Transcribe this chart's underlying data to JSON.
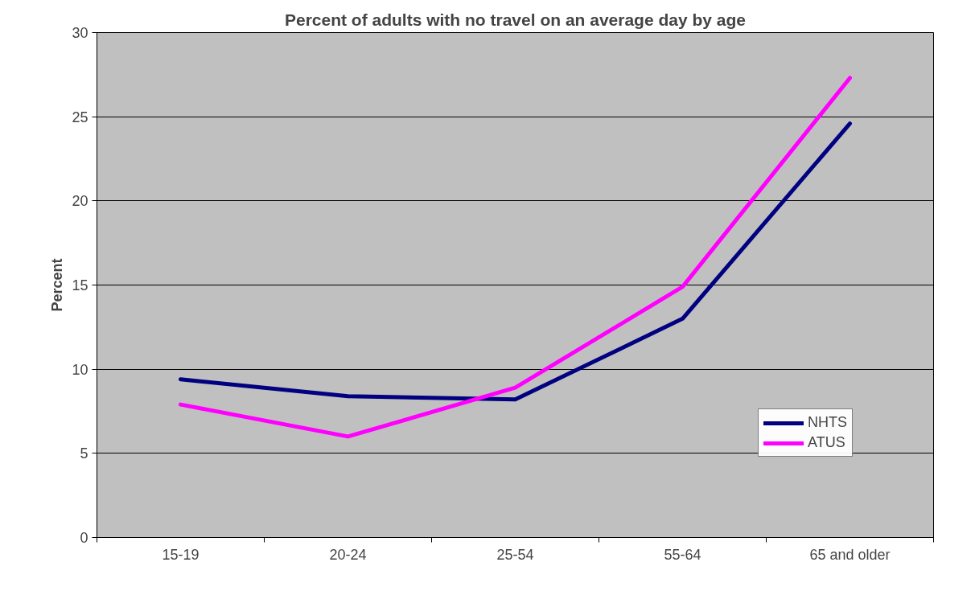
{
  "chart_data": {
    "type": "line",
    "title": "Percent of adults with no travel on an average day by age",
    "ylabel": "Percent",
    "categories": [
      "15-19",
      "20-24",
      "25-54",
      "55-64",
      "65 and older"
    ],
    "series": [
      {
        "name": "NHTS",
        "color": "#000080",
        "values": [
          9.4,
          8.4,
          8.2,
          13.0,
          24.6
        ]
      },
      {
        "name": "ATUS",
        "color": "#ff00ff",
        "values": [
          7.9,
          6.0,
          8.9,
          14.9,
          27.3
        ]
      }
    ],
    "ylim": [
      0,
      30
    ],
    "yticks": [
      0,
      5,
      10,
      15,
      20,
      25,
      30
    ],
    "grid": "y",
    "legend": "bottom right",
    "marker": "none",
    "line_style": "solid"
  }
}
